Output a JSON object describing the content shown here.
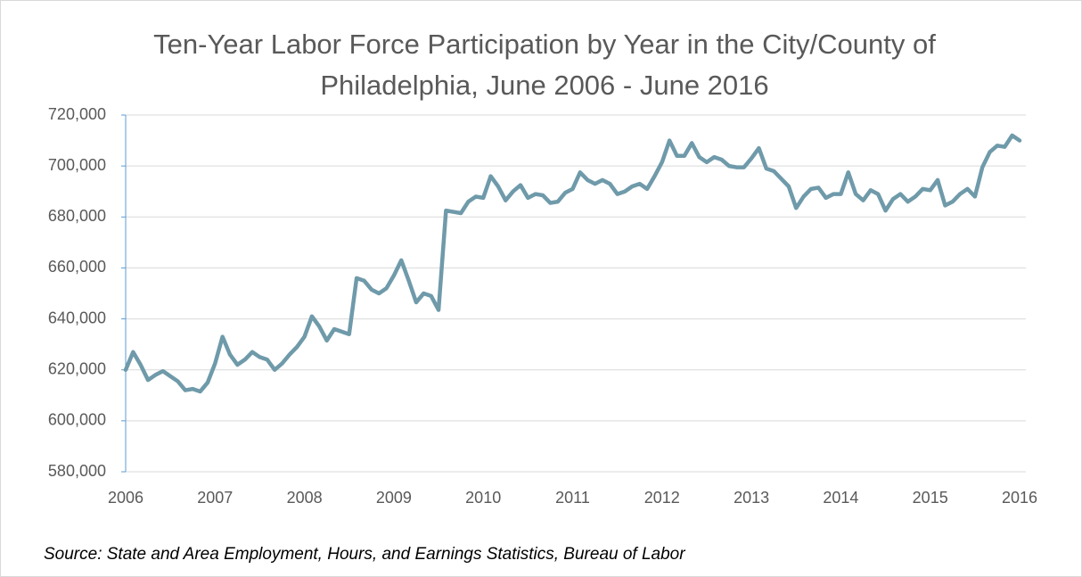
{
  "chart_data": {
    "type": "line",
    "title": "Ten-Year Labor Force Participation by Year in the City/County of Philadelphia, June 2006 - June 2016",
    "source": "Source: State and Area Employment, Hours, and Earnings Statistics, Bureau of Labor",
    "categories": [
      "2006",
      null,
      null,
      null,
      null,
      null,
      null,
      null,
      null,
      null,
      null,
      null,
      "2007",
      null,
      null,
      null,
      null,
      null,
      null,
      null,
      null,
      null,
      null,
      null,
      "2008",
      null,
      null,
      null,
      null,
      null,
      null,
      null,
      null,
      null,
      null,
      null,
      "2009",
      null,
      null,
      null,
      null,
      null,
      null,
      null,
      null,
      null,
      null,
      null,
      "2010",
      null,
      null,
      null,
      null,
      null,
      null,
      null,
      null,
      null,
      null,
      null,
      "2011",
      null,
      null,
      null,
      null,
      null,
      null,
      null,
      null,
      null,
      null,
      null,
      "2012",
      null,
      null,
      null,
      null,
      null,
      null,
      null,
      null,
      null,
      null,
      null,
      "2013",
      null,
      null,
      null,
      null,
      null,
      null,
      null,
      null,
      null,
      null,
      null,
      "2014",
      null,
      null,
      null,
      null,
      null,
      null,
      null,
      null,
      null,
      null,
      null,
      "2015",
      null,
      null,
      null,
      null,
      null,
      null,
      null,
      null,
      null,
      null,
      null,
      "2016"
    ],
    "series": [
      {
        "name": "Labor Force",
        "color": "#6f9aaa",
        "values": [
          620000,
          627000,
          622000,
          616000,
          618000,
          619500,
          617500,
          615500,
          612000,
          612500,
          611500,
          615000,
          622500,
          633000,
          626000,
          622000,
          624000,
          627000,
          625000,
          624000,
          620000,
          622500,
          626000,
          629000,
          633000,
          641000,
          637000,
          631500,
          636000,
          635000,
          634000,
          656000,
          655000,
          651500,
          650000,
          652000,
          657000,
          663000,
          655000,
          646500,
          650000,
          649000,
          643500,
          682500,
          682000,
          681500,
          686000,
          688000,
          687500,
          696000,
          692000,
          686500,
          690000,
          692500,
          687500,
          689000,
          688500,
          685500,
          686000,
          689500,
          691000,
          697500,
          694500,
          693000,
          694500,
          693000,
          689000,
          690000,
          692000,
          693000,
          691000,
          696000,
          701500,
          710000,
          704000,
          704000,
          709000,
          703500,
          701500,
          703500,
          702500,
          700000,
          699500,
          699500,
          703000,
          707000,
          699000,
          698000,
          695000,
          692000,
          683500,
          688000,
          691000,
          691500,
          687500,
          689000,
          689000,
          697500,
          689000,
          686500,
          690500,
          689000,
          682500,
          687000,
          689000,
          686000,
          688000,
          691000,
          690500,
          694500,
          684500,
          686000,
          689000,
          691000,
          688000,
          699500,
          705500,
          708000,
          707500,
          712000,
          710000
        ]
      }
    ],
    "ylim": [
      580000,
      720000
    ],
    "yticks": [
      {
        "value": 580000,
        "label": "580,000"
      },
      {
        "value": 600000,
        "label": "600,000"
      },
      {
        "value": 620000,
        "label": "620,000"
      },
      {
        "value": 640000,
        "label": "640,000"
      },
      {
        "value": 660000,
        "label": "660,000"
      },
      {
        "value": 680000,
        "label": "680,000"
      },
      {
        "value": 700000,
        "label": "700,000"
      },
      {
        "value": 720000,
        "label": "720,000"
      }
    ],
    "grid": true
  }
}
